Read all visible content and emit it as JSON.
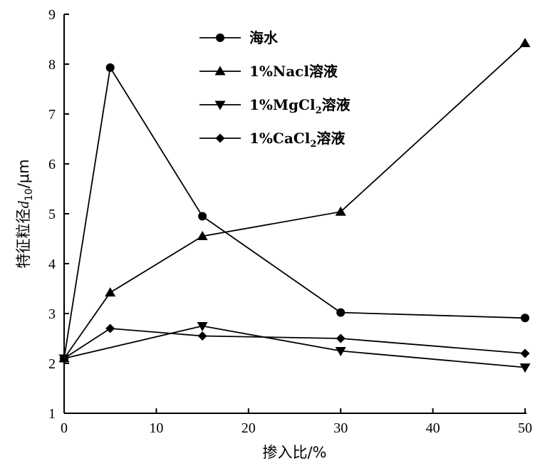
{
  "chart_data": {
    "type": "line",
    "xlabel": "掺入比/%",
    "ylabel": "特征粒径d10/μm",
    "ylabel_parts": {
      "main": "特征粒径",
      "var": "d",
      "sub": "10",
      "unit": "/μm"
    },
    "xlim": [
      0,
      50
    ],
    "ylim": [
      1,
      9
    ],
    "xticks": [
      "0",
      "10",
      "20",
      "30",
      "40",
      "50"
    ],
    "yticks": [
      "1",
      "2",
      "3",
      "4",
      "5",
      "6",
      "7",
      "8",
      "9"
    ],
    "grid": false,
    "legend_position": "top-center",
    "series": [
      {
        "name": "海水",
        "marker": "circle",
        "x": [
          0,
          5,
          15,
          30,
          50
        ],
        "y": [
          2.1,
          7.93,
          4.95,
          3.02,
          2.91
        ]
      },
      {
        "name": "1%Nacl溶液",
        "marker": "triangle-up",
        "x": [
          0,
          5,
          15,
          30,
          50
        ],
        "y": [
          2.1,
          3.42,
          4.55,
          5.04,
          8.42
        ]
      },
      {
        "name": "1%MgCl2溶液",
        "name_parts": {
          "pre": "1%MgCl",
          "sub": "2",
          "post": "溶液"
        },
        "marker": "triangle-down",
        "x": [
          0,
          15,
          30,
          50
        ],
        "y": [
          2.1,
          2.75,
          2.25,
          1.92
        ]
      },
      {
        "name": "1%CaCl2溶液",
        "name_parts": {
          "pre": "1%CaCl",
          "sub": "2",
          "post": "溶液"
        },
        "marker": "diamond",
        "x": [
          0,
          5,
          15,
          30,
          50
        ],
        "y": [
          2.1,
          2.7,
          2.55,
          2.5,
          2.2
        ]
      }
    ]
  }
}
